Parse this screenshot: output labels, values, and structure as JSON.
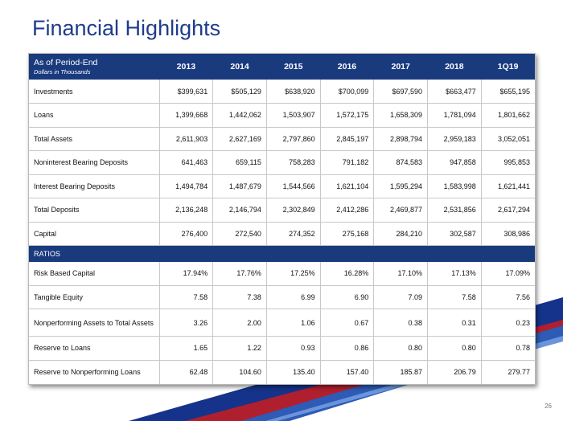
{
  "title": "Financial Highlights",
  "header": {
    "label": "As of Period-End",
    "sublabel": "Dollars in Thousands",
    "years": [
      "2013",
      "2014",
      "2015",
      "2016",
      "2017",
      "2018",
      "1Q19"
    ]
  },
  "rows": [
    {
      "label": "Investments",
      "values": [
        "$399,631",
        "$505,129",
        "$638,920",
        "$700,099",
        "$697,590",
        "$663,477",
        "$655,195"
      ]
    },
    {
      "label": "Loans",
      "values": [
        "1,399,668",
        "1,442,062",
        "1,503,907",
        "1,572,175",
        "1,658,309",
        "1,781,094",
        "1,801,662"
      ]
    },
    {
      "label": "Total Assets",
      "values": [
        "2,611,903",
        "2,627,169",
        "2,797,860",
        "2,845,197",
        "2,898,794",
        "2,959,183",
        "3,052,051"
      ]
    },
    {
      "label": "Noninterest Bearing Deposits",
      "values": [
        "641,463",
        "659,115",
        "758,283",
        "791,182",
        "874,583",
        "947,858",
        "995,853"
      ]
    },
    {
      "label": "Interest Bearing Deposits",
      "values": [
        "1,494,784",
        "1,487,679",
        "1,544,566",
        "1,621,104",
        "1,595,294",
        "1,583,998",
        "1,621,441"
      ]
    },
    {
      "label": "Total Deposits",
      "values": [
        "2,136,248",
        "2,146,794",
        "2,302,849",
        "2,412,286",
        "2,469,877",
        "2,531,856",
        "2,617,294"
      ]
    },
    {
      "label": "Capital",
      "values": [
        "276,400",
        "272,540",
        "274,352",
        "275,168",
        "284,210",
        "302,587",
        "308,986"
      ]
    }
  ],
  "ratios_label": "RATIOS",
  "ratios": [
    {
      "label": "Risk Based Capital",
      "values": [
        "17.94%",
        "17.76%",
        "17.25%",
        "16.28%",
        "17.10%",
        "17.13%",
        "17.09%"
      ]
    },
    {
      "label": "Tangible Equity",
      "values": [
        "7.58",
        "7.38",
        "6.99",
        "6.90",
        "7.09",
        "7.58",
        "7.56"
      ]
    },
    {
      "label": "Nonperforming Assets to Total Assets",
      "values": [
        "3.26",
        "2.00",
        "1.06",
        "0.67",
        "0.38",
        "0.31",
        "0.23"
      ]
    },
    {
      "label": "Reserve to Loans",
      "values": [
        "1.65",
        "1.22",
        "0.93",
        "0.86",
        "0.80",
        "0.80",
        "0.78"
      ]
    },
    {
      "label": "Reserve to Nonperforming Loans",
      "values": [
        "62.48",
        "104.60",
        "135.40",
        "157.40",
        "185.87",
        "206.79",
        "279.77"
      ]
    }
  ],
  "page_number": "26",
  "colors": {
    "navy": "#1a3a7e",
    "title_blue": "#1f3c8c",
    "red": "#b01f2e",
    "light_blue": "#4a7fd0"
  }
}
